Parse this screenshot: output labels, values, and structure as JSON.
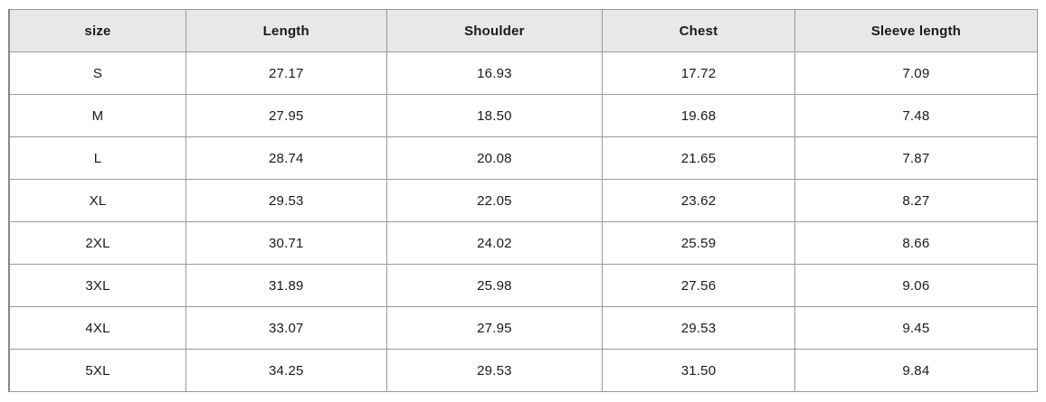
{
  "colors": {
    "header_bg": "#e8e8e8",
    "border_outer": "#878787",
    "border_inner": "#9a9a9a",
    "text": "#1a1a1a",
    "page_bg": "#ffffff"
  },
  "table": {
    "columns": [
      "size",
      "Length",
      "Shoulder",
      "Chest",
      "Sleeve length"
    ],
    "rows": [
      [
        "S",
        "27.17",
        "16.93",
        "17.72",
        "7.09"
      ],
      [
        "M",
        "27.95",
        "18.50",
        "19.68",
        "7.48"
      ],
      [
        "L",
        "28.74",
        "20.08",
        "21.65",
        "7.87"
      ],
      [
        "XL",
        "29.53",
        "22.05",
        "23.62",
        "8.27"
      ],
      [
        "2XL",
        "30.71",
        "24.02",
        "25.59",
        "8.66"
      ],
      [
        "3XL",
        "31.89",
        "25.98",
        "27.56",
        "9.06"
      ],
      [
        "4XL",
        "33.07",
        "27.95",
        "29.53",
        "9.45"
      ],
      [
        "5XL",
        "34.25",
        "29.53",
        "31.50",
        "9.84"
      ]
    ]
  },
  "chart_data": {
    "type": "table",
    "title": "",
    "columns": [
      "size",
      "Length",
      "Shoulder",
      "Chest",
      "Sleeve length"
    ],
    "rows": [
      [
        "S",
        27.17,
        16.93,
        17.72,
        7.09
      ],
      [
        "M",
        27.95,
        18.5,
        19.68,
        7.48
      ],
      [
        "L",
        28.74,
        20.08,
        21.65,
        7.87
      ],
      [
        "XL",
        29.53,
        22.05,
        23.62,
        8.27
      ],
      [
        "2XL",
        30.71,
        24.02,
        25.59,
        8.66
      ],
      [
        "3XL",
        31.89,
        25.98,
        27.56,
        9.06
      ],
      [
        "4XL",
        33.07,
        27.95,
        29.53,
        9.45
      ],
      [
        "5XL",
        34.25,
        29.53,
        31.5,
        9.84
      ]
    ]
  }
}
